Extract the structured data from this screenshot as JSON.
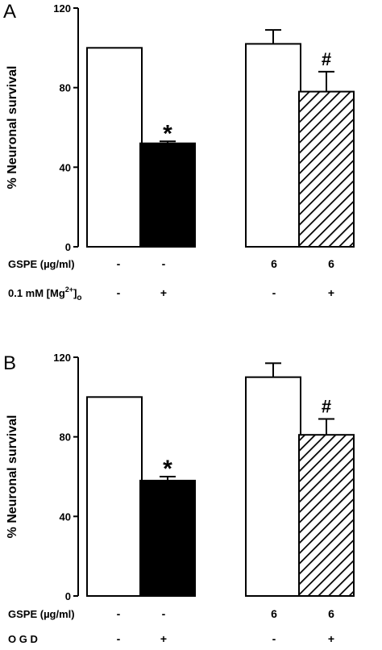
{
  "chart_data": [
    {
      "type": "bar",
      "panel": "A",
      "ylabel": "% Neuronal survival",
      "ylim": [
        0,
        120
      ],
      "yticks": [
        "0",
        "40",
        "80",
        "120"
      ],
      "bars": [
        {
          "value": 100,
          "error": 0,
          "fill": "white",
          "annotation": ""
        },
        {
          "value": 52,
          "error": 1,
          "fill": "black",
          "annotation": "*"
        },
        {
          "value": 102,
          "error": 7,
          "fill": "white",
          "annotation": ""
        },
        {
          "value": 78,
          "error": 10,
          "fill": "hatched",
          "annotation": "#"
        }
      ],
      "conditions": [
        {
          "label": "GSPE (µg/ml)",
          "values": [
            "-",
            "-",
            "6",
            "6"
          ]
        },
        {
          "label": "0.1 mM [Mg",
          "label_sup": "2+",
          "label_close": "]",
          "label_sub": "o",
          "values": [
            "-",
            "+",
            "-",
            "+"
          ]
        }
      ]
    },
    {
      "type": "bar",
      "panel": "B",
      "ylabel": "% Neuronal survival",
      "ylim": [
        0,
        120
      ],
      "yticks": [
        "0",
        "40",
        "80",
        "120"
      ],
      "bars": [
        {
          "value": 100,
          "error": 0,
          "fill": "white",
          "annotation": ""
        },
        {
          "value": 58,
          "error": 2,
          "fill": "black",
          "annotation": "*"
        },
        {
          "value": 110,
          "error": 7,
          "fill": "white",
          "annotation": ""
        },
        {
          "value": 81,
          "error": 8,
          "fill": "hatched",
          "annotation": "#"
        }
      ],
      "conditions": [
        {
          "label": "GSPE (µg/ml)",
          "values": [
            "-",
            "-",
            "6",
            "6"
          ]
        },
        {
          "label": "O G D",
          "values": [
            "-",
            "+",
            "-",
            "+"
          ]
        }
      ]
    }
  ]
}
